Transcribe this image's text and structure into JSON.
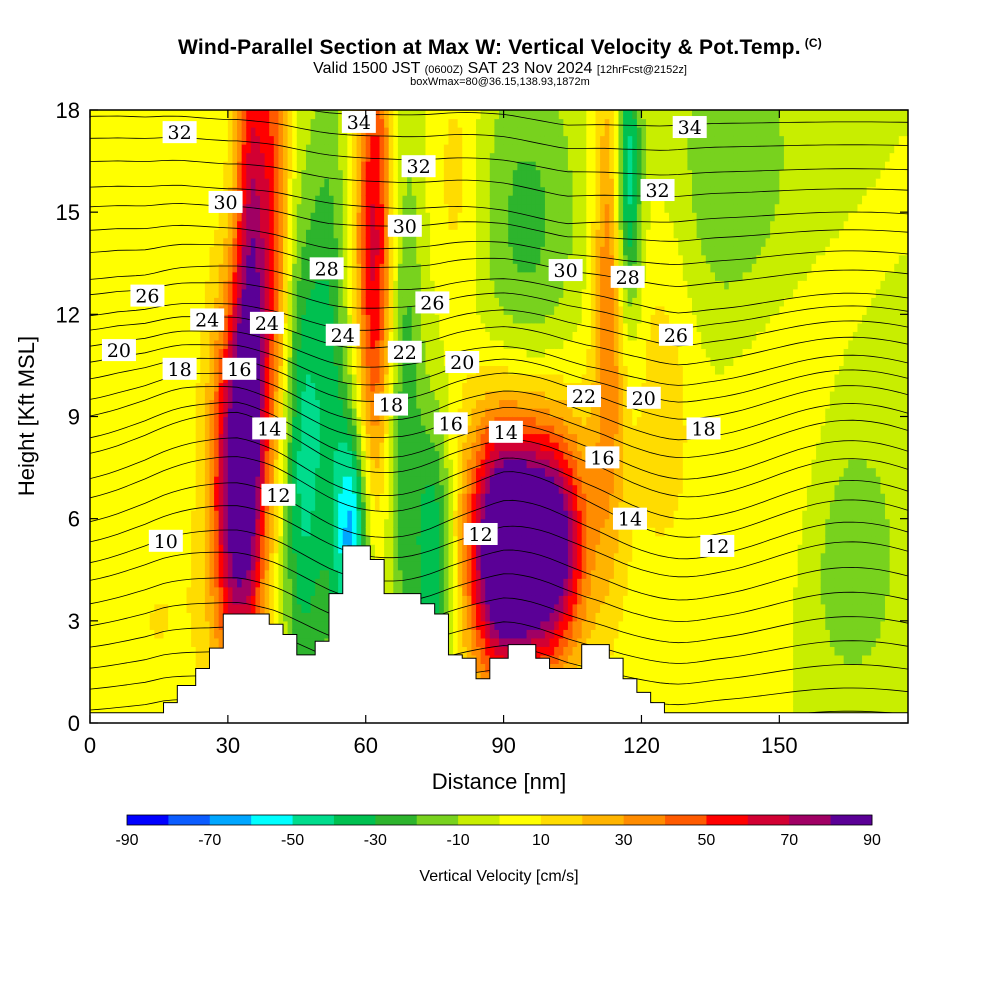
{
  "title": {
    "main": "Wind-Parallel Section at Max W: Vertical Velocity & Pot.Temp.",
    "copyright": "(C)",
    "valid_prefix": "Valid 1500 JST",
    "valid_utc": "(0600Z)",
    "valid_date": "SAT 23 Nov 2024",
    "forecast": "[12hrFcst@2152z]",
    "box_info": "boxWmax=80@36.15,138.93,1872m"
  },
  "colors": {
    "fill_scale": [
      "#0000ff",
      "#0b5cff",
      "#00a6ff",
      "#00ffff",
      "#00dc8c",
      "#00c050",
      "#2db42d",
      "#78d21e",
      "#c8ee00",
      "#ffff00",
      "#ffdc00",
      "#ffb400",
      "#ff8c00",
      "#ff5a00",
      "#ff0000",
      "#d20032",
      "#a00064",
      "#5a0096"
    ],
    "terrain": "#ffffff",
    "contour": "#000000"
  },
  "chart_data": {
    "type": "heatmap",
    "xlabel": "Distance [nm]",
    "ylabel": "Height [Kft MSL]",
    "xlim": [
      0,
      178
    ],
    "ylim": [
      0,
      18
    ],
    "x_ticks": [
      "0",
      "30",
      "60",
      "90",
      "120",
      "150"
    ],
    "x_tick_values": [
      0,
      30,
      60,
      90,
      120,
      150
    ],
    "y_ticks": [
      "0",
      "3",
      "6",
      "9",
      "12",
      "15",
      "18"
    ],
    "y_tick_values": [
      0,
      3,
      6,
      9,
      12,
      15,
      18
    ],
    "colorbar": {
      "label": "Vertical Velocity [cm/s]",
      "min": -90,
      "max": 90,
      "step": 10,
      "tick_labels": [
        "-90",
        "-70",
        "-50",
        "-30",
        "-10",
        "10",
        "30",
        "50",
        "70",
        "90"
      ]
    },
    "terrain_profile": [
      [
        0,
        0.3
      ],
      [
        16,
        0.3
      ],
      [
        16,
        0.6
      ],
      [
        19,
        0.6
      ],
      [
        19,
        1.1
      ],
      [
        23,
        1.1
      ],
      [
        23,
        1.6
      ],
      [
        26,
        1.6
      ],
      [
        26,
        2.2
      ],
      [
        29,
        2.2
      ],
      [
        29,
        3.2
      ],
      [
        39,
        3.2
      ],
      [
        39,
        2.9
      ],
      [
        42,
        2.9
      ],
      [
        42,
        2.6
      ],
      [
        45,
        2.6
      ],
      [
        45,
        2.0
      ],
      [
        49,
        2.0
      ],
      [
        49,
        2.4
      ],
      [
        52,
        2.4
      ],
      [
        52,
        3.8
      ],
      [
        55,
        3.8
      ],
      [
        55,
        5.2
      ],
      [
        61,
        5.2
      ],
      [
        61,
        4.8
      ],
      [
        64,
        4.8
      ],
      [
        64,
        3.8
      ],
      [
        72,
        3.8
      ],
      [
        72,
        3.5
      ],
      [
        75,
        3.5
      ],
      [
        75,
        3.2
      ],
      [
        78,
        3.2
      ],
      [
        78,
        2.0
      ],
      [
        81,
        2.0
      ],
      [
        81,
        1.9
      ],
      [
        84,
        1.9
      ],
      [
        84,
        1.3
      ],
      [
        87,
        1.3
      ],
      [
        87,
        1.9
      ],
      [
        91,
        1.9
      ],
      [
        91,
        2.3
      ],
      [
        97,
        2.3
      ],
      [
        97,
        1.9
      ],
      [
        100,
        1.9
      ],
      [
        100,
        1.6
      ],
      [
        107,
        1.6
      ],
      [
        107,
        2.3
      ],
      [
        113,
        2.3
      ],
      [
        113,
        1.9
      ],
      [
        116,
        1.9
      ],
      [
        116,
        1.3
      ],
      [
        119,
        1.3
      ],
      [
        119,
        0.9
      ],
      [
        122,
        0.9
      ],
      [
        122,
        0.6
      ],
      [
        125,
        0.6
      ],
      [
        125,
        0.3
      ],
      [
        178,
        0.3
      ]
    ],
    "vertical_velocity_cells": [
      {
        "x": 32,
        "y": 7.0,
        "sx": 4,
        "sy": 4.0,
        "w": 90
      },
      {
        "x": 35,
        "y": 14.0,
        "sx": 2.5,
        "sy": 6.0,
        "w": 60
      },
      {
        "x": 40,
        "y": 15.0,
        "sx": 2.5,
        "sy": 5.0,
        "w": 45
      },
      {
        "x": 46,
        "y": 7.5,
        "sx": 3,
        "sy": 5.0,
        "w": -40
      },
      {
        "x": 52,
        "y": 10.0,
        "sx": 3,
        "sy": 6.0,
        "w": -30
      },
      {
        "x": 57,
        "y": 5.5,
        "sx": 2.5,
        "sy": 2.5,
        "w": -60
      },
      {
        "x": 62,
        "y": 14.0,
        "sx": 3,
        "sy": 5.0,
        "w": 65
      },
      {
        "x": 68,
        "y": 9.0,
        "sx": 3,
        "sy": 6.0,
        "w": -30
      },
      {
        "x": 75,
        "y": 5.0,
        "sx": 3,
        "sy": 3.0,
        "w": -45
      },
      {
        "x": 90,
        "y": 5.0,
        "sx": 5,
        "sy": 2.5,
        "w": 90
      },
      {
        "x": 100,
        "y": 5.2,
        "sx": 5,
        "sy": 2.2,
        "w": 75
      },
      {
        "x": 95,
        "y": 6.0,
        "sx": 12,
        "sy": 3.5,
        "w": 35
      },
      {
        "x": 95,
        "y": 14.0,
        "sx": 8,
        "sy": 4.0,
        "w": -25
      },
      {
        "x": 113,
        "y": 13.0,
        "sx": 2.5,
        "sy": 5.0,
        "w": 40
      },
      {
        "x": 117,
        "y": 16.0,
        "sx": 2,
        "sy": 3.0,
        "w": -50
      },
      {
        "x": 125,
        "y": 10.0,
        "sx": 5,
        "sy": 4.0,
        "w": 15
      },
      {
        "x": 140,
        "y": 16.0,
        "sx": 10,
        "sy": 3.5,
        "w": -20
      },
      {
        "x": 150,
        "y": 8.0,
        "sx": 10,
        "sy": 4.0,
        "w": 12
      },
      {
        "x": 165,
        "y": 5.0,
        "sx": 8,
        "sy": 3.0,
        "w": -20
      },
      {
        "x": 15,
        "y": 3.0,
        "sx": 10,
        "sy": 3.0,
        "w": 10
      },
      {
        "x": 13,
        "y": 13.0,
        "sx": 8,
        "sy": 3.5,
        "w": 8
      },
      {
        "x": 80,
        "y": 16.0,
        "sx": 4,
        "sy": 3.0,
        "w": 15
      }
    ],
    "theta_labels": [
      {
        "text": "32",
        "x": 19.5,
        "y": 17.35
      },
      {
        "text": "34",
        "x": 58.5,
        "y": 17.65
      },
      {
        "text": "34",
        "x": 130.5,
        "y": 17.5
      },
      {
        "text": "32",
        "x": 71.5,
        "y": 16.35
      },
      {
        "text": "30",
        "x": 29.5,
        "y": 15.3
      },
      {
        "text": "32",
        "x": 123.5,
        "y": 15.65
      },
      {
        "text": "30",
        "x": 68.5,
        "y": 14.6
      },
      {
        "text": "28",
        "x": 51.5,
        "y": 13.35
      },
      {
        "text": "30",
        "x": 103.5,
        "y": 13.3
      },
      {
        "text": "28",
        "x": 117,
        "y": 13.1
      },
      {
        "text": "26",
        "x": 12.5,
        "y": 12.55
      },
      {
        "text": "26",
        "x": 74.5,
        "y": 12.35
      },
      {
        "text": "24",
        "x": 25.5,
        "y": 11.85
      },
      {
        "text": "24",
        "x": 38.5,
        "y": 11.75
      },
      {
        "text": "24",
        "x": 55,
        "y": 11.4
      },
      {
        "text": "26",
        "x": 127.5,
        "y": 11.4
      },
      {
        "text": "20",
        "x": 6.3,
        "y": 10.95
      },
      {
        "text": "22",
        "x": 68.5,
        "y": 10.9
      },
      {
        "text": "20",
        "x": 81,
        "y": 10.6
      },
      {
        "text": "18",
        "x": 19.5,
        "y": 10.4
      },
      {
        "text": "16",
        "x": 32.5,
        "y": 10.4
      },
      {
        "text": "22",
        "x": 107.5,
        "y": 9.6
      },
      {
        "text": "20",
        "x": 120.5,
        "y": 9.55
      },
      {
        "text": "18",
        "x": 65.5,
        "y": 9.35
      },
      {
        "text": "16",
        "x": 78.5,
        "y": 8.8
      },
      {
        "text": "14",
        "x": 39,
        "y": 8.65
      },
      {
        "text": "14",
        "x": 90.5,
        "y": 8.55
      },
      {
        "text": "18",
        "x": 133.5,
        "y": 8.65
      },
      {
        "text": "16",
        "x": 111.5,
        "y": 7.8
      },
      {
        "text": "12",
        "x": 41,
        "y": 6.7
      },
      {
        "text": "14",
        "x": 117.5,
        "y": 6.0
      },
      {
        "text": "12",
        "x": 85,
        "y": 5.55
      },
      {
        "text": "10",
        "x": 16.5,
        "y": 5.35
      },
      {
        "text": "12",
        "x": 136.5,
        "y": 5.2
      }
    ]
  }
}
